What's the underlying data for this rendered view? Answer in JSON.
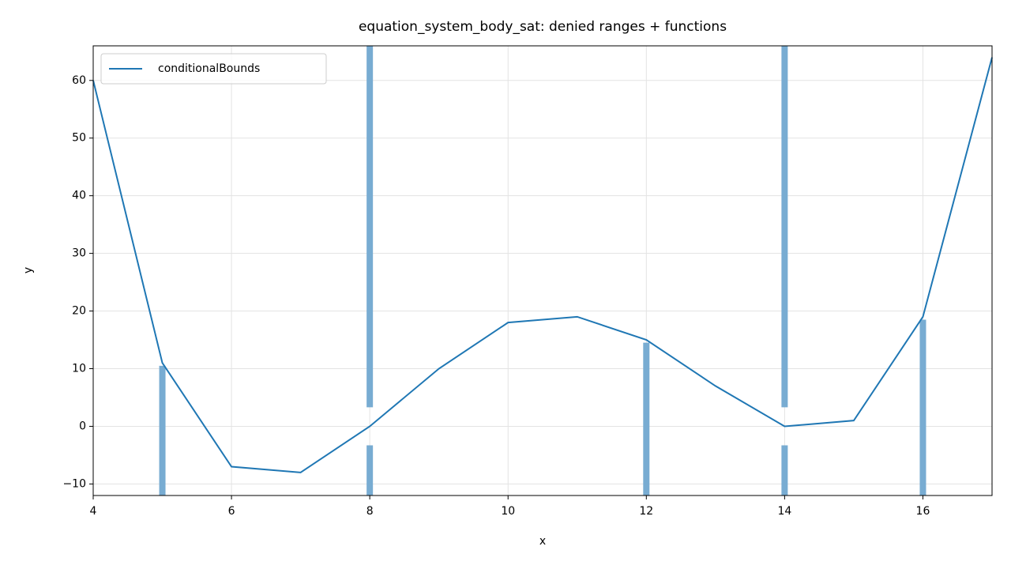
{
  "chart_data": {
    "type": "line",
    "title": "equation_system_body_sat: denied ranges + functions",
    "xlabel": "x",
    "ylabel": "y",
    "x": [
      4,
      5,
      6,
      7,
      8,
      9,
      10,
      11,
      12,
      13,
      14,
      15,
      16,
      17
    ],
    "series": [
      {
        "name": "conditionalBounds",
        "color": "#1f77b4",
        "values": [
          60,
          11,
          -7,
          -8,
          0,
          10,
          18,
          19,
          15,
          7,
          0,
          1,
          19,
          64
        ]
      }
    ],
    "denied_ranges": [
      {
        "x": 5,
        "ymin": -12,
        "ymax": 10.5
      },
      {
        "x": 8,
        "ymin": 3.3,
        "ymax": 66
      },
      {
        "x": 8,
        "ymin": -12,
        "ymax": -3.3
      },
      {
        "x": 12,
        "ymin": -12,
        "ymax": 14.5
      },
      {
        "x": 14,
        "ymin": 3.3,
        "ymax": 66
      },
      {
        "x": 14,
        "ymin": -12,
        "ymax": -3.3
      },
      {
        "x": 16,
        "ymin": -12,
        "ymax": 18.5
      }
    ],
    "denied_color": "#78acd2",
    "xlim": [
      4,
      17
    ],
    "ylim": [
      -12,
      66
    ],
    "xticks": [
      4,
      6,
      8,
      10,
      12,
      14,
      16
    ],
    "yticks": [
      {
        "value": -10,
        "label": "−10"
      },
      0,
      10,
      20,
      30,
      40,
      50,
      60
    ],
    "grid": true,
    "legend": "upper left"
  }
}
